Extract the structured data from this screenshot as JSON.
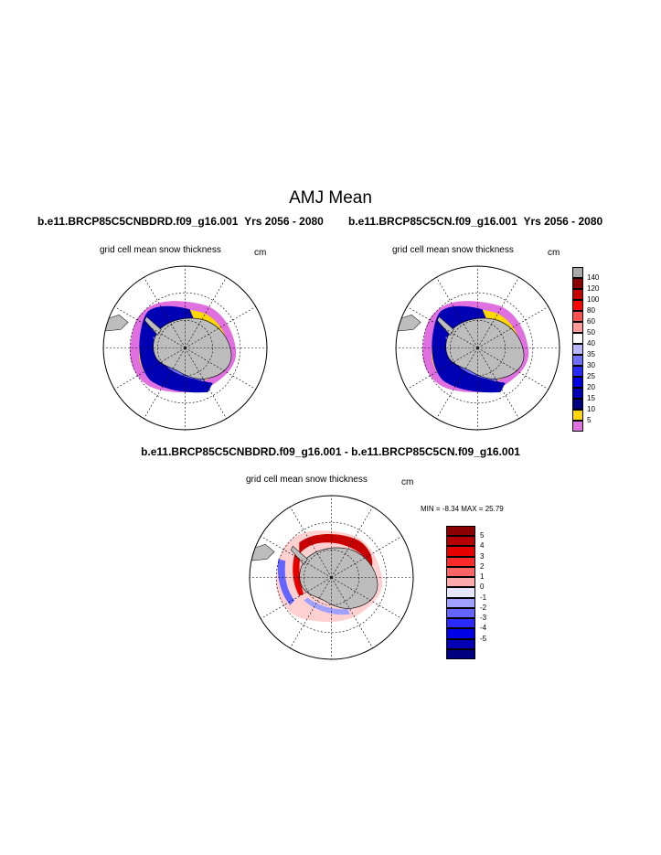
{
  "header": {
    "title": "AMJ Mean"
  },
  "panel_left": {
    "run": "b.e11.BRCP85C5CNBDRD.f09_g16.001",
    "years": "Yrs 2056 - 2080",
    "variable": "grid cell mean snow thickness",
    "units": "cm"
  },
  "panel_right": {
    "run": "b.e11.BRCP85C5CN.f09_g16.001",
    "years": "Yrs 2056 - 2080",
    "variable": "grid cell mean snow thickness",
    "units": "cm"
  },
  "panel_diff": {
    "title": "b.e11.BRCP85C5CNBDRD.f09_g16.001 - b.e11.BRCP85C5CN.f09_g16.001",
    "variable": "grid cell mean snow thickness",
    "units": "cm",
    "minmax": "MIN =  -8.34 MAX =  25.79"
  },
  "colorbar_main": {
    "labels": [
      "140",
      "120",
      "100",
      "80",
      "60",
      "50",
      "40",
      "35",
      "30",
      "25",
      "20",
      "15",
      "10",
      "5"
    ],
    "colors": [
      "#a9a9a9",
      "#8b0000",
      "#c80000",
      "#ff0000",
      "#ff5050",
      "#ff9a9a",
      "#ffffff",
      "#b8b8ff",
      "#7070ff",
      "#2828ff",
      "#0000e6",
      "#0000b4",
      "#000080",
      "#ffd700",
      "#e070e0"
    ]
  },
  "colorbar_diff": {
    "labels": [
      "5",
      "4",
      "3",
      "2",
      "1",
      "0",
      "-1",
      "-2",
      "-3",
      "-4",
      "-5"
    ],
    "colors": [
      "#8b0000",
      "#b40000",
      "#e60000",
      "#ff2a2a",
      "#ff6464",
      "#ffaaaa",
      "#e6e6ff",
      "#a0a0ff",
      "#6464ff",
      "#2a2aff",
      "#0000e6",
      "#0000b4",
      "#000080"
    ]
  },
  "colors": {
    "land": "#bdbdbd",
    "ocean": "#ffffff"
  }
}
